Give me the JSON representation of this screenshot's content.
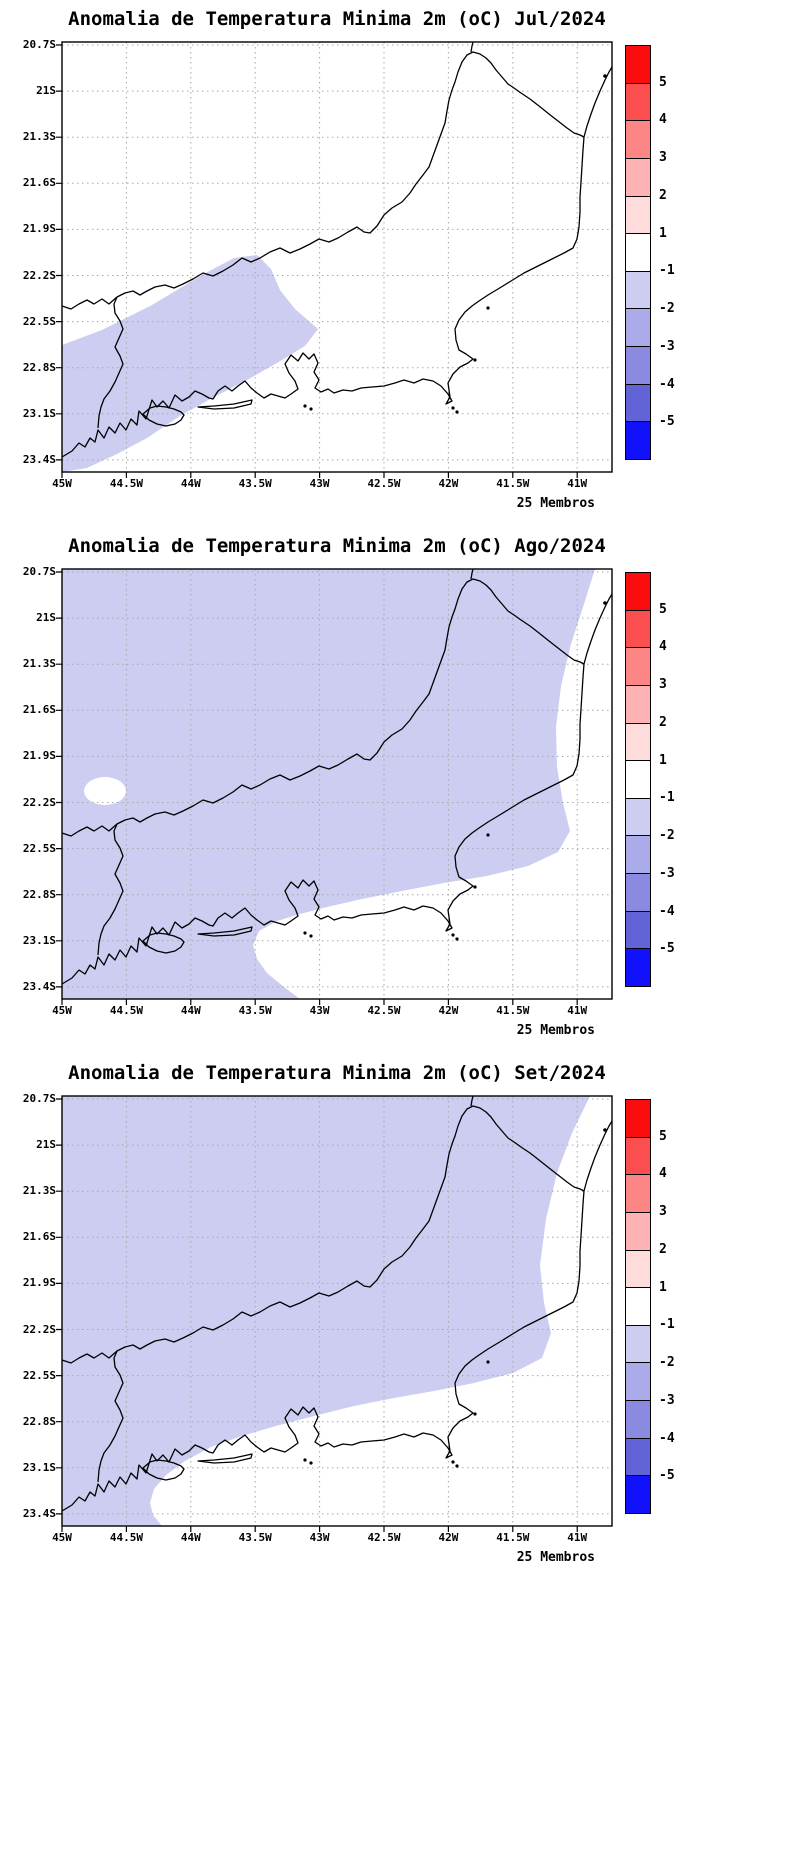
{
  "page": {
    "background": "#ffffff"
  },
  "panels": [
    {
      "id": "jul-2024",
      "title": "Anomalia de Temperatura Minima 2m (oC) Jul/2024",
      "members_label": "25 Membros"
    },
    {
      "id": "ago-2024",
      "title": "Anomalia de Temperatura Minima 2m (oC) Ago/2024",
      "members_label": "25 Membros"
    },
    {
      "id": "set-2024",
      "title": "Anomalia de Temperatura Minima 2m (oC) Set/2024",
      "members_label": "25 Membros"
    }
  ],
  "axes": {
    "lat_labels": [
      "20.7S",
      "21S",
      "21.3S",
      "21.6S",
      "21.9S",
      "22.2S",
      "22.5S",
      "22.8S",
      "23.1S",
      "23.4S"
    ],
    "lon_labels": [
      "45W",
      "44.5W",
      "44W",
      "43.5W",
      "43W",
      "42.5W",
      "42W",
      "41.5W",
      "41W"
    ]
  },
  "colorbar": {
    "labels": [
      "5",
      "4",
      "3",
      "2",
      "1",
      "-1",
      "-2",
      "-3",
      "-4",
      "-5"
    ],
    "colors": [
      "#f90d0d",
      "#fb4f4f",
      "#fc8585",
      "#fdb3b3",
      "#fedcdc",
      "#ffffff",
      "#cdcdf1",
      "#ababe9",
      "#8a8ae1",
      "#6363d8",
      "#1111fb"
    ]
  },
  "map": {
    "shade_color": "#cdcdf1",
    "coastline_color": "#000000",
    "ocean_land_fill": "#ffffff"
  },
  "chart_data": [
    {
      "type": "heatmap",
      "title": "Anomalia de Temperatura Minima 2m (oC) Jul/2024",
      "x_ticks": [
        "45W",
        "44.5W",
        "44W",
        "43.5W",
        "43W",
        "42.5W",
        "42W",
        "41.5W",
        "41W"
      ],
      "y_ticks": [
        "20.7S",
        "21S",
        "21.3S",
        "21.6S",
        "21.9S",
        "22.2S",
        "22.5S",
        "22.8S",
        "23.1S",
        "23.4S"
      ],
      "xlim": [
        "45W",
        "40.7W"
      ],
      "ylim": [
        "20.7S",
        "23.4S"
      ],
      "grid": "dotted",
      "legend_position": "right",
      "colorbar_levels": [
        5,
        4,
        3,
        2,
        1,
        -1,
        -2,
        -3,
        -4,
        -5
      ],
      "annotation": "25 Membros",
      "shaded_regions": [
        {
          "value_range_oC": "-2 to -1",
          "color": "#cdcdf1",
          "area": "southwestern corner of the domain: Paraiba valley / Serra area and the Costa Verde coastal strip of Rio de Janeiro state, roughly west of 42.5W and south of 22.1S"
        }
      ],
      "rest_of_domain_oC": "-1 to 1 (white)"
    },
    {
      "type": "heatmap",
      "title": "Anomalia de Temperatura Minima 2m (oC) Ago/2024",
      "x_ticks": [
        "45W",
        "44.5W",
        "44W",
        "43.5W",
        "43W",
        "42.5W",
        "42W",
        "41.5W",
        "41W"
      ],
      "y_ticks": [
        "20.7S",
        "21S",
        "21.3S",
        "21.6S",
        "21.9S",
        "22.2S",
        "22.5S",
        "22.8S",
        "23.1S",
        "23.4S"
      ],
      "xlim": [
        "45W",
        "40.7W"
      ],
      "ylim": [
        "20.7S",
        "23.4S"
      ],
      "grid": "dotted",
      "legend_position": "right",
      "colorbar_levels": [
        5,
        4,
        3,
        2,
        1,
        -1,
        -2,
        -3,
        -4,
        -5
      ],
      "annotation": "25 Membros",
      "shaded_regions": [
        {
          "value_range_oC": "-2 to -1",
          "color": "#cdcdf1",
          "area": "most of the domain; unshaded (-1 to 1) only along the eastern coastal band near 41W, over the south-central coast around Rio de Janeiro city / Regiao dos Lagos, and a small pocket near 44.7W 22.1S"
        }
      ],
      "rest_of_domain_oC": "-1 to 1 (white)"
    },
    {
      "type": "heatmap",
      "title": "Anomalia de Temperatura Minima 2m (oC) Set/2024",
      "x_ticks": [
        "45W",
        "44.5W",
        "44W",
        "43.5W",
        "43W",
        "42.5W",
        "42W",
        "41.5W",
        "41W"
      ],
      "y_ticks": [
        "20.7S",
        "21S",
        "21.3S",
        "21.6S",
        "21.9S",
        "22.2S",
        "22.5S",
        "22.8S",
        "23.1S",
        "23.4S"
      ],
      "xlim": [
        "45W",
        "40.7W"
      ],
      "ylim": [
        "20.7S",
        "23.4S"
      ],
      "grid": "dotted",
      "legend_position": "right",
      "colorbar_levels": [
        5,
        4,
        3,
        2,
        1,
        -1,
        -2,
        -3,
        -4,
        -5
      ],
      "annotation": "25 Membros",
      "shaded_regions": [
        {
          "value_range_oC": "-2 to -1",
          "color": "#cdcdf1",
          "area": "northwestern two thirds of the domain; unshaded (-1 to 1) band along the eastern coastal strip widening southwestward over the whole southern coast, leaving only the far southwest corner shaded near 44.8W 23.3S"
        }
      ],
      "rest_of_domain_oC": "-1 to 1 (white)"
    }
  ]
}
